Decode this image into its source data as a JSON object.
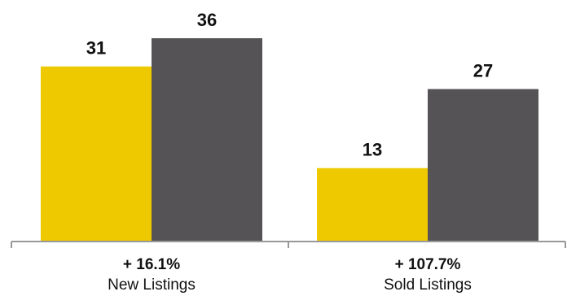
{
  "chart_data": {
    "type": "bar",
    "categories": [
      "New Listings",
      "Sold Listings"
    ],
    "category_changes": [
      "+ 16.1%",
      "+ 107.7%"
    ],
    "series": [
      {
        "values": [
          31,
          13
        ],
        "color": "#EEC900"
      },
      {
        "values": [
          36,
          27
        ],
        "color": "#555356"
      }
    ],
    "ylim": [
      0,
      40
    ],
    "grid": false,
    "axis_color": "#999999"
  }
}
